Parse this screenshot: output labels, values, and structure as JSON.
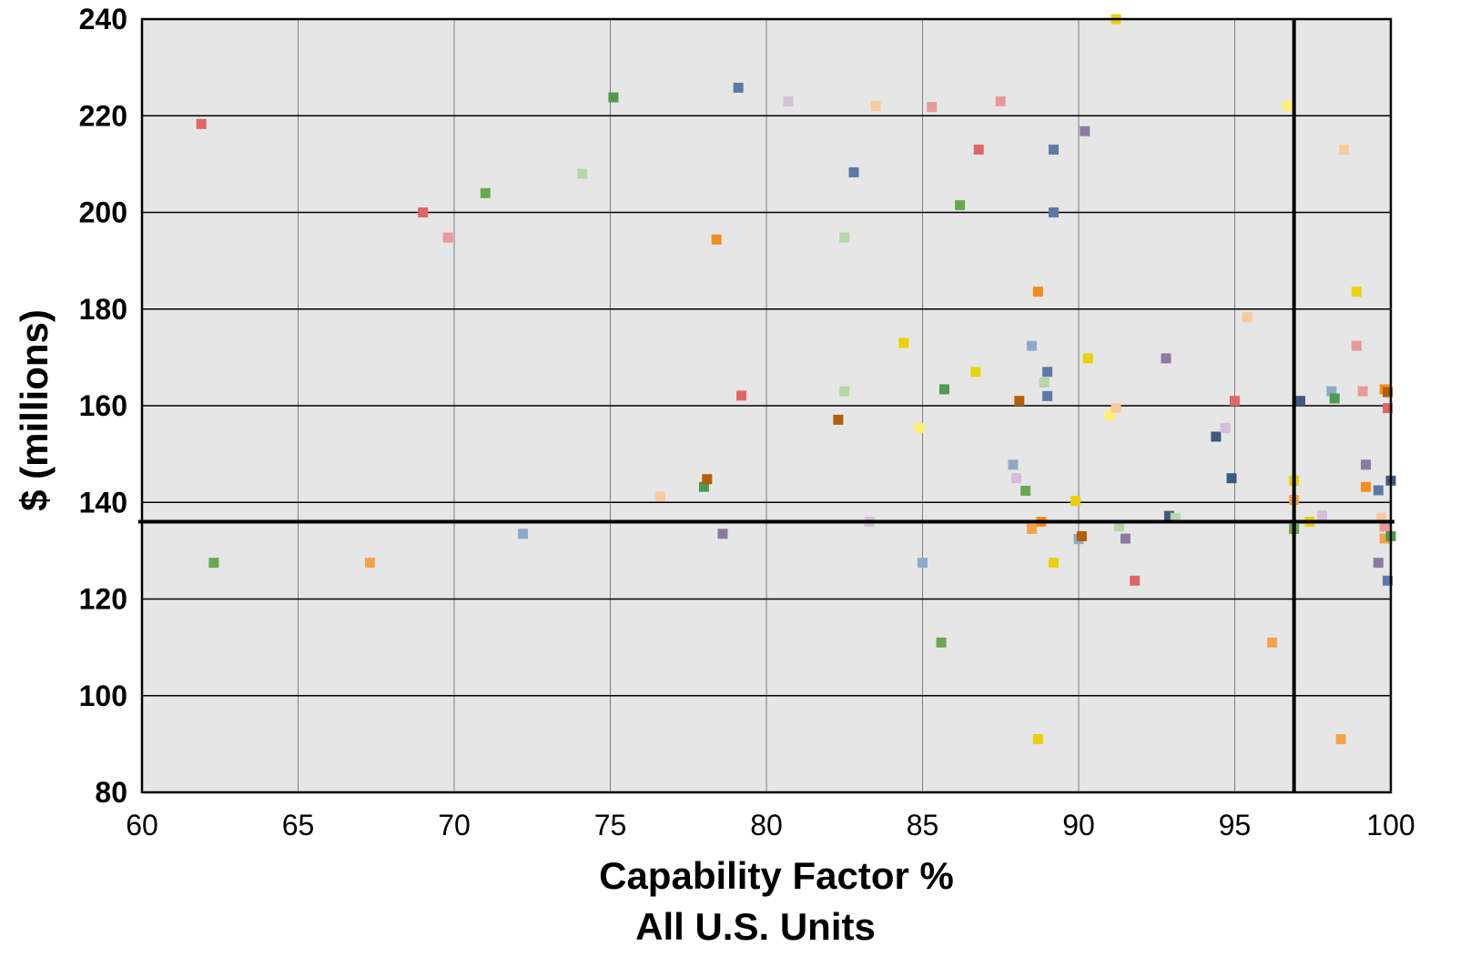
{
  "chart_data": {
    "type": "scatter",
    "xlabel_lines": [
      "Capability Factor %",
      "All U.S. Units"
    ],
    "ylabel": "$ (millions)",
    "xlim": [
      60,
      100
    ],
    "ylim": [
      80,
      240
    ],
    "x_ticks": [
      60,
      65,
      70,
      75,
      80,
      85,
      90,
      95,
      100
    ],
    "y_ticks": [
      80,
      100,
      120,
      140,
      160,
      180,
      200,
      220,
      240
    ],
    "grid": true,
    "plot_background": "#e6e6e6",
    "reference_lines": {
      "x": 96.9,
      "y": 136
    },
    "points": [
      {
        "x": 61.9,
        "y": 218.3,
        "c": "#e06666"
      },
      {
        "x": 62.3,
        "y": 127.5,
        "c": "#6aa84f"
      },
      {
        "x": 67.3,
        "y": 127.5,
        "c": "#f6a24b"
      },
      {
        "x": 69.0,
        "y": 200.0,
        "c": "#e06666"
      },
      {
        "x": 69.8,
        "y": 194.8,
        "c": "#ea9999"
      },
      {
        "x": 71.0,
        "y": 204.0,
        "c": "#6aa84f"
      },
      {
        "x": 72.2,
        "y": 133.5,
        "c": "#8fa9c9"
      },
      {
        "x": 74.1,
        "y": 208.0,
        "c": "#b6d7a8"
      },
      {
        "x": 75.1,
        "y": 223.8,
        "c": "#4e9a4e"
      },
      {
        "x": 76.6,
        "y": 141.2,
        "c": "#f9cb9c"
      },
      {
        "x": 78.0,
        "y": 143.2,
        "c": "#4e9a4e"
      },
      {
        "x": 78.1,
        "y": 144.8,
        "c": "#b45f06"
      },
      {
        "x": 78.4,
        "y": 194.4,
        "c": "#f48c1e"
      },
      {
        "x": 78.6,
        "y": 133.5,
        "c": "#8e7a9f"
      },
      {
        "x": 79.1,
        "y": 225.8,
        "c": "#5b7aa8"
      },
      {
        "x": 79.2,
        "y": 162.1,
        "c": "#e06666"
      },
      {
        "x": 80.7,
        "y": 223.0,
        "c": "#d5bfd8"
      },
      {
        "x": 82.3,
        "y": 157.1,
        "c": "#b45f06"
      },
      {
        "x": 82.5,
        "y": 163.0,
        "c": "#b6d7a8"
      },
      {
        "x": 82.5,
        "y": 194.8,
        "c": "#b6d7a8"
      },
      {
        "x": 82.8,
        "y": 208.3,
        "c": "#5b7aa8"
      },
      {
        "x": 83.3,
        "y": 136.0,
        "c": "#d5bfd8"
      },
      {
        "x": 83.5,
        "y": 222.0,
        "c": "#f9cb9c"
      },
      {
        "x": 84.4,
        "y": 173.0,
        "c": "#ead10a"
      },
      {
        "x": 84.9,
        "y": 155.4,
        "c": "#fff06e"
      },
      {
        "x": 85.0,
        "y": 127.5,
        "c": "#8fa9c9"
      },
      {
        "x": 85.3,
        "y": 221.8,
        "c": "#ea9999"
      },
      {
        "x": 85.6,
        "y": 111.0,
        "c": "#6aa84f"
      },
      {
        "x": 85.7,
        "y": 163.4,
        "c": "#4e9a4e"
      },
      {
        "x": 86.2,
        "y": 201.5,
        "c": "#6aa84f"
      },
      {
        "x": 86.7,
        "y": 167.0,
        "c": "#ead10a"
      },
      {
        "x": 86.8,
        "y": 213.0,
        "c": "#e06666"
      },
      {
        "x": 87.5,
        "y": 223.0,
        "c": "#ea9999"
      },
      {
        "x": 87.9,
        "y": 147.8,
        "c": "#8fa9c9"
      },
      {
        "x": 88.0,
        "y": 145.0,
        "c": "#d5bfd8"
      },
      {
        "x": 88.1,
        "y": 161.0,
        "c": "#b45f06"
      },
      {
        "x": 88.3,
        "y": 142.4,
        "c": "#6aa84f"
      },
      {
        "x": 88.5,
        "y": 172.4,
        "c": "#8fa9c9"
      },
      {
        "x": 88.5,
        "y": 134.5,
        "c": "#f6a24b"
      },
      {
        "x": 88.7,
        "y": 183.6,
        "c": "#f48c1e"
      },
      {
        "x": 88.7,
        "y": 91.0,
        "c": "#ead10a"
      },
      {
        "x": 88.8,
        "y": 136.0,
        "c": "#f48c1e"
      },
      {
        "x": 88.9,
        "y": 164.8,
        "c": "#b6d7a8"
      },
      {
        "x": 89.0,
        "y": 162.0,
        "c": "#5b7aa8"
      },
      {
        "x": 89.0,
        "y": 167.0,
        "c": "#5b7aa8"
      },
      {
        "x": 89.2,
        "y": 200.0,
        "c": "#5b7aa8"
      },
      {
        "x": 89.2,
        "y": 213.0,
        "c": "#5b7aa8"
      },
      {
        "x": 89.2,
        "y": 127.5,
        "c": "#ead10a"
      },
      {
        "x": 89.9,
        "y": 140.3,
        "c": "#ead10a"
      },
      {
        "x": 90.0,
        "y": 132.4,
        "c": "#8fa9c9"
      },
      {
        "x": 90.1,
        "y": 133.0,
        "c": "#b45f06"
      },
      {
        "x": 90.3,
        "y": 169.8,
        "c": "#ead10a"
      },
      {
        "x": 90.2,
        "y": 216.8,
        "c": "#8e7a9f"
      },
      {
        "x": 91.0,
        "y": 158.0,
        "c": "#fff06e"
      },
      {
        "x": 91.2,
        "y": 159.5,
        "c": "#f9cb9c"
      },
      {
        "x": 91.2,
        "y": 240.0,
        "c": "#ead10a"
      },
      {
        "x": 91.3,
        "y": 135.0,
        "c": "#b6d7a8"
      },
      {
        "x": 91.5,
        "y": 132.5,
        "c": "#8e7a9f"
      },
      {
        "x": 91.8,
        "y": 123.8,
        "c": "#e06666"
      },
      {
        "x": 92.8,
        "y": 169.8,
        "c": "#8e7a9f"
      },
      {
        "x": 92.9,
        "y": 137.2,
        "c": "#3d5a80"
      },
      {
        "x": 93.1,
        "y": 136.8,
        "c": "#b6d7a8"
      },
      {
        "x": 94.4,
        "y": 153.6,
        "c": "#3d5a80"
      },
      {
        "x": 94.7,
        "y": 155.4,
        "c": "#d5bfd8"
      },
      {
        "x": 94.9,
        "y": 145.0,
        "c": "#3d5a80"
      },
      {
        "x": 95.0,
        "y": 161.0,
        "c": "#e06666"
      },
      {
        "x": 95.4,
        "y": 178.3,
        "c": "#f9cb9c"
      },
      {
        "x": 96.2,
        "y": 111.0,
        "c": "#f6a24b"
      },
      {
        "x": 96.7,
        "y": 222.0,
        "c": "#fff06e"
      },
      {
        "x": 96.9,
        "y": 134.5,
        "c": "#6aa84f"
      },
      {
        "x": 96.9,
        "y": 144.5,
        "c": "#ead10a"
      },
      {
        "x": 96.9,
        "y": 140.5,
        "c": "#f6a24b"
      },
      {
        "x": 97.1,
        "y": 161.0,
        "c": "#3d5a80"
      },
      {
        "x": 97.4,
        "y": 136.0,
        "c": "#ead10a"
      },
      {
        "x": 97.8,
        "y": 137.3,
        "c": "#d5bfd8"
      },
      {
        "x": 98.1,
        "y": 163.0,
        "c": "#8fa9c9"
      },
      {
        "x": 98.2,
        "y": 161.5,
        "c": "#4e9a4e"
      },
      {
        "x": 98.4,
        "y": 91.0,
        "c": "#f6a24b"
      },
      {
        "x": 98.5,
        "y": 213.0,
        "c": "#f9cb9c"
      },
      {
        "x": 98.9,
        "y": 183.6,
        "c": "#ead10a"
      },
      {
        "x": 98.9,
        "y": 172.4,
        "c": "#ea9999"
      },
      {
        "x": 99.1,
        "y": 163.0,
        "c": "#ea9999"
      },
      {
        "x": 99.2,
        "y": 147.8,
        "c": "#8e7a9f"
      },
      {
        "x": 99.2,
        "y": 143.2,
        "c": "#f48c1e"
      },
      {
        "x": 99.6,
        "y": 127.5,
        "c": "#8e7a9f"
      },
      {
        "x": 99.6,
        "y": 142.5,
        "c": "#5b7aa8"
      },
      {
        "x": 99.7,
        "y": 136.8,
        "c": "#f9cb9c"
      },
      {
        "x": 99.8,
        "y": 135.0,
        "c": "#ea9999"
      },
      {
        "x": 99.8,
        "y": 132.5,
        "c": "#f6a24b"
      },
      {
        "x": 99.8,
        "y": 163.4,
        "c": "#f48c1e"
      },
      {
        "x": 99.9,
        "y": 162.8,
        "c": "#b45f06"
      },
      {
        "x": 99.9,
        "y": 159.5,
        "c": "#e06666"
      },
      {
        "x": 99.9,
        "y": 123.8,
        "c": "#5b7aa8"
      },
      {
        "x": 100.0,
        "y": 144.5,
        "c": "#3d5a80"
      },
      {
        "x": 100.0,
        "y": 133.0,
        "c": "#4e9a4e"
      }
    ]
  }
}
